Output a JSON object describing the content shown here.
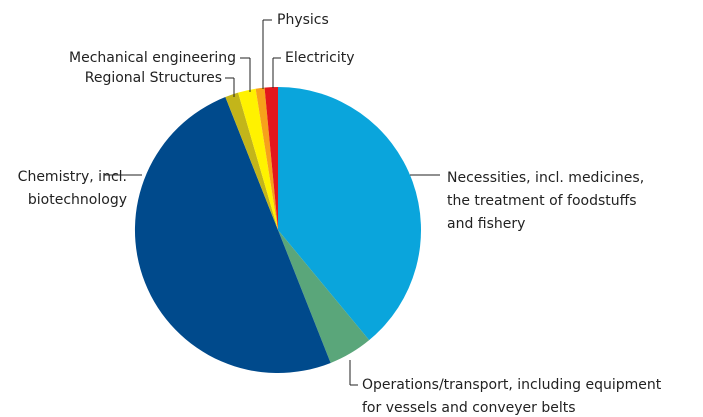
{
  "chart_data": {
    "type": "pie",
    "categories": [
      "Necessities, incl. medicines,\nthe treatment of foodstuffs\nand fishery",
      "Operations/transport, including equipment\nfor vessels and conveyer belts",
      "Chemistry, incl.\nbiotechnology",
      "Regional Structures",
      "Mechanical engineering",
      "Physics",
      "Electricity"
    ],
    "values": [
      39,
      5,
      50,
      1.5,
      2,
      1,
      1.5
    ],
    "colors": [
      "#0aa5dc",
      "#5aa67a",
      "#004a8c",
      "#c3b51a",
      "#fff200",
      "#f7a11a",
      "#e3161b"
    ]
  }
}
